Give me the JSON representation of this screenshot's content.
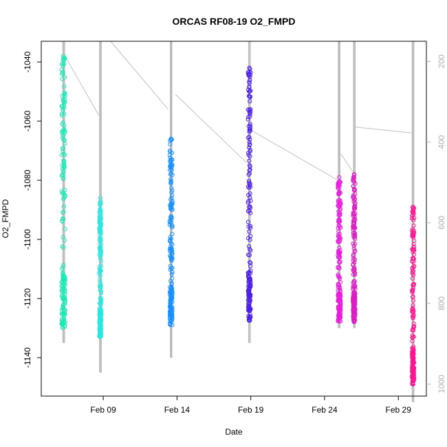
{
  "chart_data": {
    "type": "scatter",
    "title": "ORCAS RF08-19 O2_FMPD",
    "xlabel": "Date",
    "ylabel": "O2_FMPD",
    "x_ticks": [
      {
        "day": 9,
        "label": "Feb 09"
      },
      {
        "day": 14,
        "label": "Feb 14"
      },
      {
        "day": 19,
        "label": "Feb 19"
      },
      {
        "day": 24,
        "label": "Feb 24"
      },
      {
        "day": 29,
        "label": "Feb 29"
      }
    ],
    "xlim_days": [
      4.8,
      30.9
    ],
    "ylim": [
      -1153,
      -1033
    ],
    "y_ticks": [
      -1040,
      -1060,
      -1080,
      -1100,
      -1120,
      -1140
    ],
    "y2_label_color": "#b0b0b0",
    "y2lim": [
      1030,
      150
    ],
    "y2_ticks": [
      200,
      400,
      600,
      800,
      1000
    ],
    "trace_color": "#c0c0c0",
    "flights": [
      {
        "day": 6.3,
        "color": "#1de9b6",
        "ymin": -1130,
        "ymax": -1038,
        "top_y": -1038,
        "outline": -1135,
        "jitter": 0.25
      },
      {
        "day": 8.8,
        "color": "#26e8e0",
        "ymin": -1133,
        "ymax": -1087,
        "top_y": -1086,
        "outline": -1145,
        "jitter": 0.12
      },
      {
        "day": 13.6,
        "color": "#1a8fff",
        "ymin": -1129,
        "ymax": -1066,
        "top_y": -1066,
        "outline": -1140,
        "jitter": 0.18
      },
      {
        "day": 18.9,
        "color": "#4a1fe8",
        "ymin": -1128,
        "ymax": -1042,
        "top_y": -1042,
        "outline": -1135,
        "jitter": 0.18
      },
      {
        "day": 25.0,
        "color": "#e81fdc",
        "ymin": -1128,
        "ymax": -1079,
        "top_y": -1079,
        "outline": -1130,
        "jitter": 0.18
      },
      {
        "day": 26.0,
        "color": "#d81fc0",
        "ymin": -1128,
        "ymax": -1078,
        "top_y": -1078,
        "outline": -1130,
        "jitter": 0.16
      },
      {
        "day": 30.0,
        "color": "#ff1493",
        "ymin": -1149,
        "ymax": -1089,
        "top_y": -1089,
        "outline": -1155,
        "jitter": 0.14
      }
    ],
    "transit_lines": [
      {
        "points": [
          [
            6.4,
            -1038
          ],
          [
            8.7,
            -1058
          ]
        ]
      },
      {
        "points": [
          [
            9.5,
            -1033
          ],
          [
            13.4,
            -1056
          ]
        ]
      },
      {
        "points": [
          [
            13.9,
            -1051
          ],
          [
            18.7,
            -1074
          ]
        ]
      },
      {
        "points": [
          [
            19.0,
            -1063
          ],
          [
            24.9,
            -1080
          ]
        ]
      },
      {
        "points": [
          [
            25.1,
            -1071
          ],
          [
            25.9,
            -1077
          ]
        ]
      },
      {
        "points": [
          [
            26.1,
            -1062
          ],
          [
            29.9,
            -1064
          ]
        ]
      }
    ]
  }
}
